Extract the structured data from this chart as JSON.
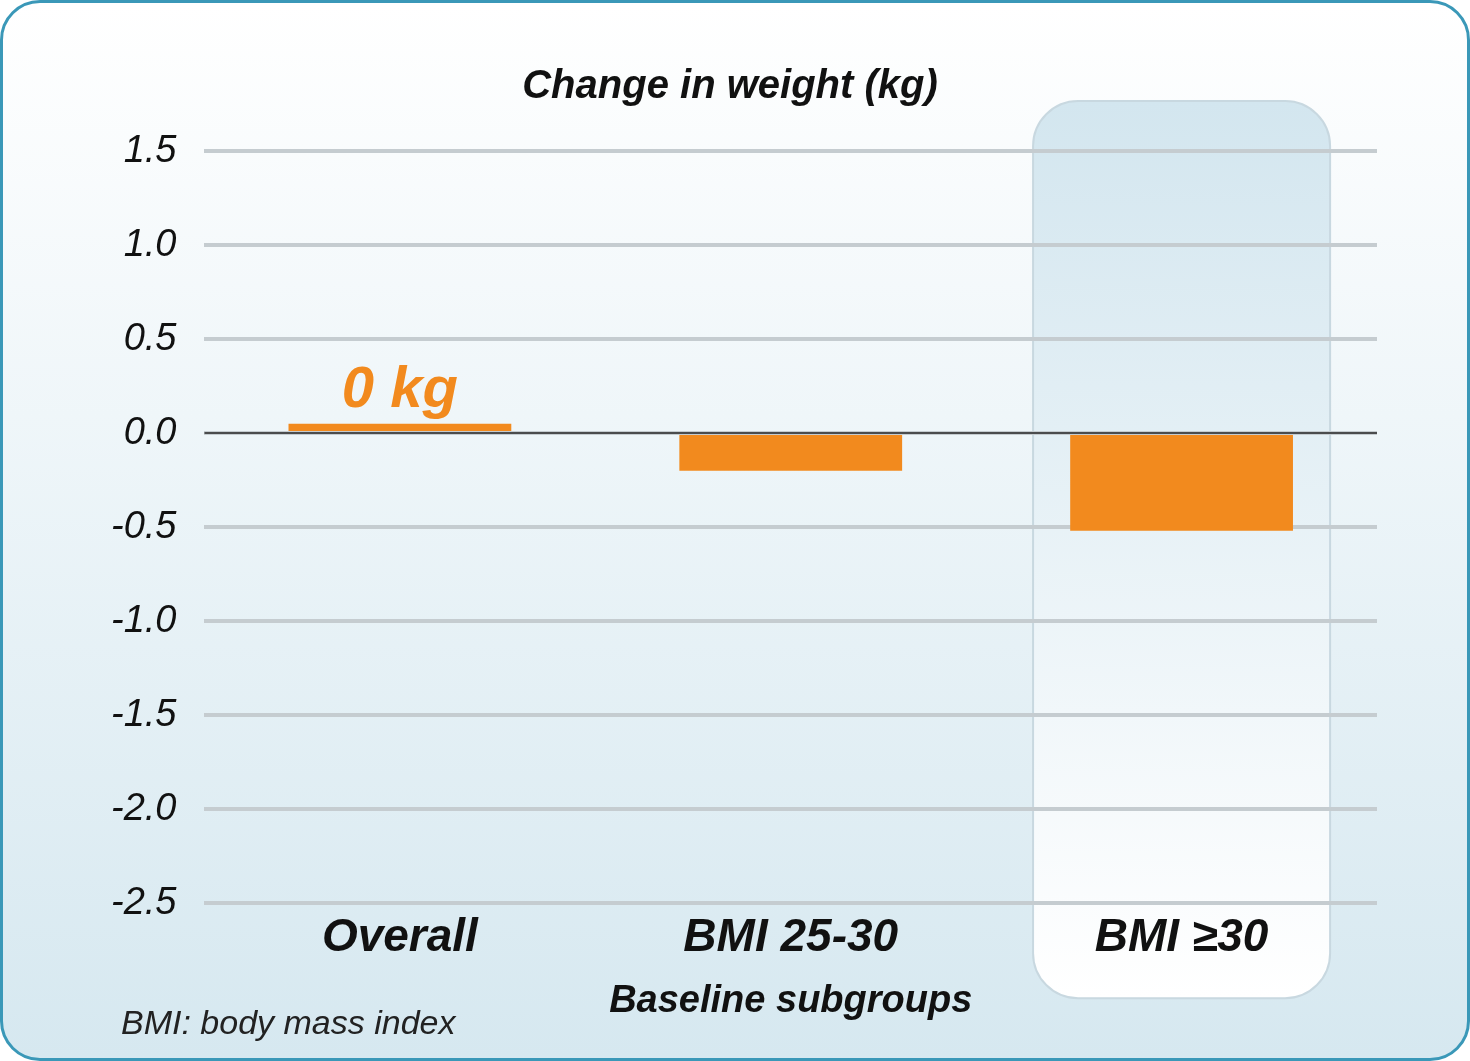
{
  "chart_data": {
    "type": "bar",
    "title": "Change in weight (kg)",
    "xlabel": "Baseline subgroups",
    "categories": [
      "Overall",
      "BMI 25-30",
      "BMI ≥30"
    ],
    "values": [
      0.05,
      -0.2,
      -0.52
    ],
    "color": "#f28a1e",
    "value_labels": [
      "0 kg",
      null,
      null
    ],
    "ylim": [
      -2.5,
      1.5
    ],
    "yticks": [
      {
        "value": 1.5,
        "label": "1.5"
      },
      {
        "value": 1,
        "label": "1.0"
      },
      {
        "value": 0.5,
        "label": "0.5"
      },
      {
        "value": 0,
        "label": "0.0"
      },
      {
        "value": -0.5,
        "label": "-0.5"
      },
      {
        "value": -1,
        "label": "-1.0"
      },
      {
        "value": -1.5,
        "label": "-1.5"
      },
      {
        "value": -2,
        "label": "-2.0"
      },
      {
        "value": -2.5,
        "label": "-2.5"
      }
    ],
    "grid": "y",
    "legend": false,
    "bands": [
      {
        "axis": "x",
        "from": "BMI ≥30",
        "to": "BMI ≥30",
        "color": "#d3e6ef"
      }
    ],
    "annotations": [
      "BMI: body mass index"
    ]
  }
}
